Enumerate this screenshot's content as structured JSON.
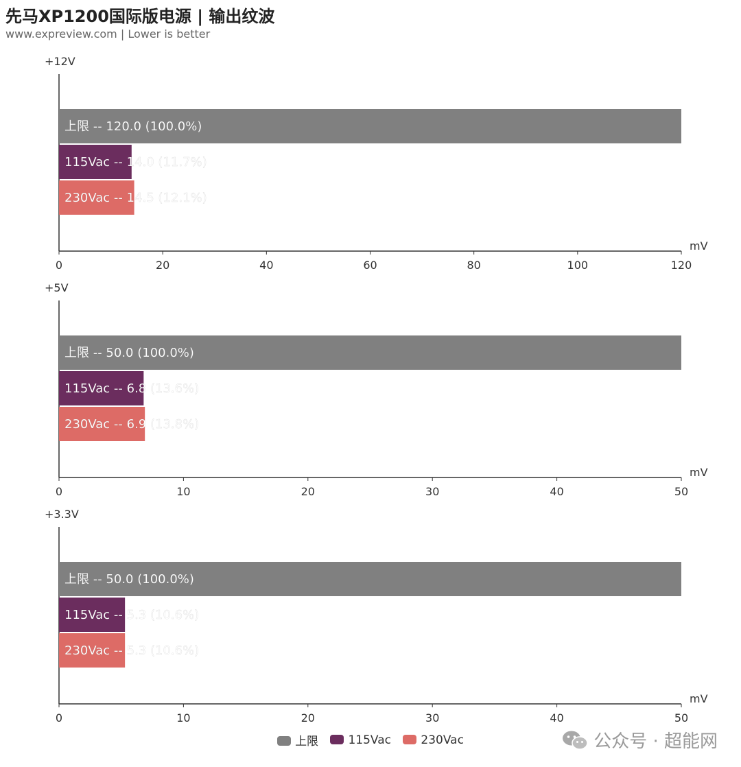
{
  "header": {
    "title": "先马XP1200国际版电源 | 输出纹波",
    "subtitle": "www.expreview.com | Lower is better"
  },
  "watermark": {
    "text": "公众号 · 超能网",
    "icon": "wechat-icon"
  },
  "legend": [
    {
      "label": "上限",
      "color": "#808080"
    },
    {
      "label": "115Vac",
      "color": "#6b2d5e"
    },
    {
      "label": "230Vac",
      "color": "#dd6b66"
    }
  ],
  "chart_data": [
    {
      "type": "bar",
      "orientation": "horizontal",
      "title": "+12V",
      "xlabel": "mV",
      "xlim": [
        0,
        120
      ],
      "ticks": [
        0,
        20,
        40,
        60,
        80,
        100,
        120
      ],
      "categories": [
        "上限",
        "115Vac",
        "230Vac"
      ],
      "values": [
        120.0,
        14.0,
        14.5
      ],
      "percent_labels": [
        "100.0%",
        "11.7%",
        "12.1%"
      ],
      "colors": [
        "#808080",
        "#6b2d5e",
        "#dd6b66"
      ]
    },
    {
      "type": "bar",
      "orientation": "horizontal",
      "title": "+5V",
      "xlabel": "mV",
      "xlim": [
        0,
        50
      ],
      "ticks": [
        0,
        10,
        20,
        30,
        40,
        50
      ],
      "categories": [
        "上限",
        "115Vac",
        "230Vac"
      ],
      "values": [
        50.0,
        6.8,
        6.9
      ],
      "percent_labels": [
        "100.0%",
        "13.6%",
        "13.8%"
      ],
      "colors": [
        "#808080",
        "#6b2d5e",
        "#dd6b66"
      ]
    },
    {
      "type": "bar",
      "orientation": "horizontal",
      "title": "+3.3V",
      "xlabel": "mV",
      "xlim": [
        0,
        50
      ],
      "ticks": [
        0,
        10,
        20,
        30,
        40,
        50
      ],
      "categories": [
        "上限",
        "115Vac",
        "230Vac"
      ],
      "values": [
        50.0,
        5.3,
        5.3
      ],
      "percent_labels": [
        "100.0%",
        "10.6%",
        "10.6%"
      ],
      "colors": [
        "#808080",
        "#6b2d5e",
        "#dd6b66"
      ]
    }
  ]
}
